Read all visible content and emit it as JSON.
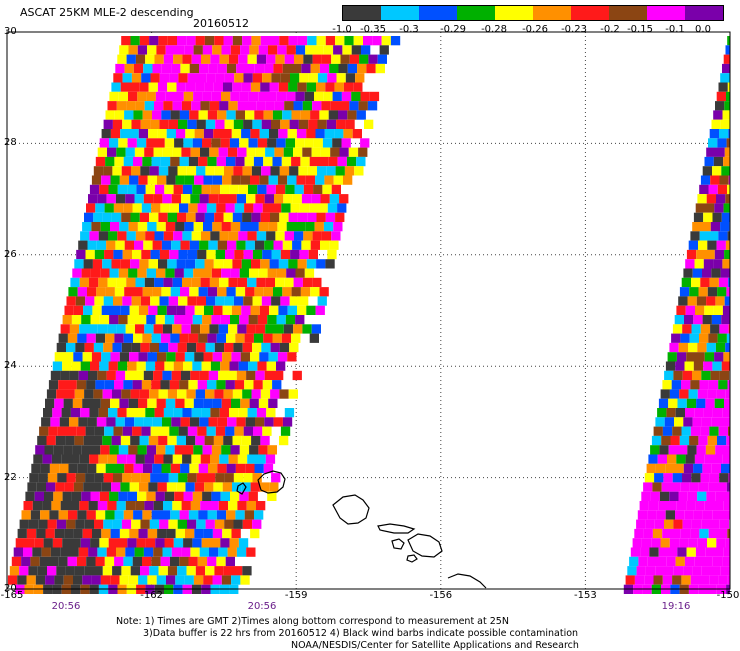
{
  "header": {
    "title": "ASCAT 25KM MLE-2 descending",
    "date": "20160512"
  },
  "colorbar": {
    "colors": [
      "#3a3a3a",
      "#00c8ff",
      "#0050ff",
      "#00b000",
      "#ffff00",
      "#ff9000",
      "#ff1a1a",
      "#8b4513",
      "#ff00ff",
      "#7a00aa"
    ],
    "labels": [
      "-1.0",
      "-0.35",
      "-0.3",
      "-0.29",
      "-0.28",
      "-0.26",
      "-0.23",
      "-0.2",
      "-0.15",
      "-0.1",
      "0.0"
    ]
  },
  "axes": {
    "y_ticks": [
      "30",
      "28",
      "26",
      "24",
      "22",
      "20"
    ],
    "x_ticks": [
      "-165",
      "-162",
      "-159",
      "-156",
      "-153",
      "-150"
    ],
    "times": [
      "20:56",
      "20:56",
      "19:16"
    ]
  },
  "notes": {
    "line1": "Note: 1) Times are GMT 2)Times along bottom correspond to measurement at 25N",
    "line2": "3)Data buffer is 22 hrs from 20160512 4) Black wind barbs indicate possible contamination",
    "line3": "NOAA/NESDIS/Center for Satellite Applications and Research"
  },
  "map": {
    "lon_range": [
      -165,
      -150
    ],
    "lat_range": [
      20,
      30
    ]
  }
}
